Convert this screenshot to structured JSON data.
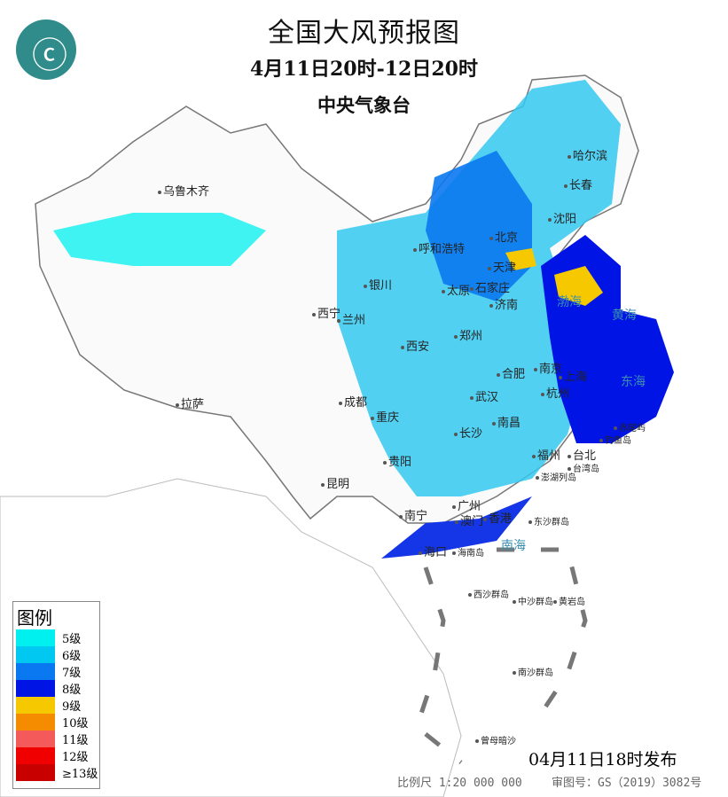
{
  "header": {
    "title": "全国大风预报图",
    "period": "4月11日20时-12日20时",
    "agency": "中央气象台"
  },
  "logo": {
    "icon": "cma-dragon-logo",
    "color": "#2f8c8a"
  },
  "cities": [
    "乌鲁木齐",
    "哈尔滨",
    "长春",
    "沈阳",
    "呼和浩特",
    "北京",
    "天津",
    "太原",
    "石家庄",
    "济南",
    "银川",
    "西宁",
    "兰州",
    "西安",
    "郑州",
    "合肥",
    "南京",
    "上海",
    "杭州",
    "武汉",
    "成都",
    "重庆",
    "长沙",
    "南昌",
    "拉萨",
    "贵阳",
    "昆明",
    "福州",
    "台北",
    "南宁",
    "广州",
    "澳门",
    "香港",
    "海口",
    "东沙群岛",
    "西沙群岛",
    "中沙群岛",
    "黄岩岛",
    "南沙群岛",
    "曾母暗沙",
    "海南岛",
    "台湾岛",
    "钓鱼岛",
    "赤尾屿",
    "澎湖列岛"
  ],
  "seas": [
    "渤海",
    "黄海",
    "东海",
    "南海"
  ],
  "legend": {
    "title": "图例",
    "items": [
      {
        "label": "5级",
        "color": "#00f0f0"
      },
      {
        "label": "6级",
        "color": "#00c8f0"
      },
      {
        "label": "7级",
        "color": "#0a78f0"
      },
      {
        "label": "8级",
        "color": "#0014e6"
      },
      {
        "label": "9级",
        "color": "#f5c800"
      },
      {
        "label": "10级",
        "color": "#f58c00"
      },
      {
        "label": "11级",
        "color": "#f55a5a"
      },
      {
        "label": "12级",
        "color": "#f00000"
      },
      {
        "label": "≥13级",
        "color": "#c80000"
      }
    ]
  },
  "footer": {
    "issued": "04月11日18时发布",
    "scale": "比例尺 1:20 000 000",
    "approval": "审图号：GS（2019）3082号"
  }
}
